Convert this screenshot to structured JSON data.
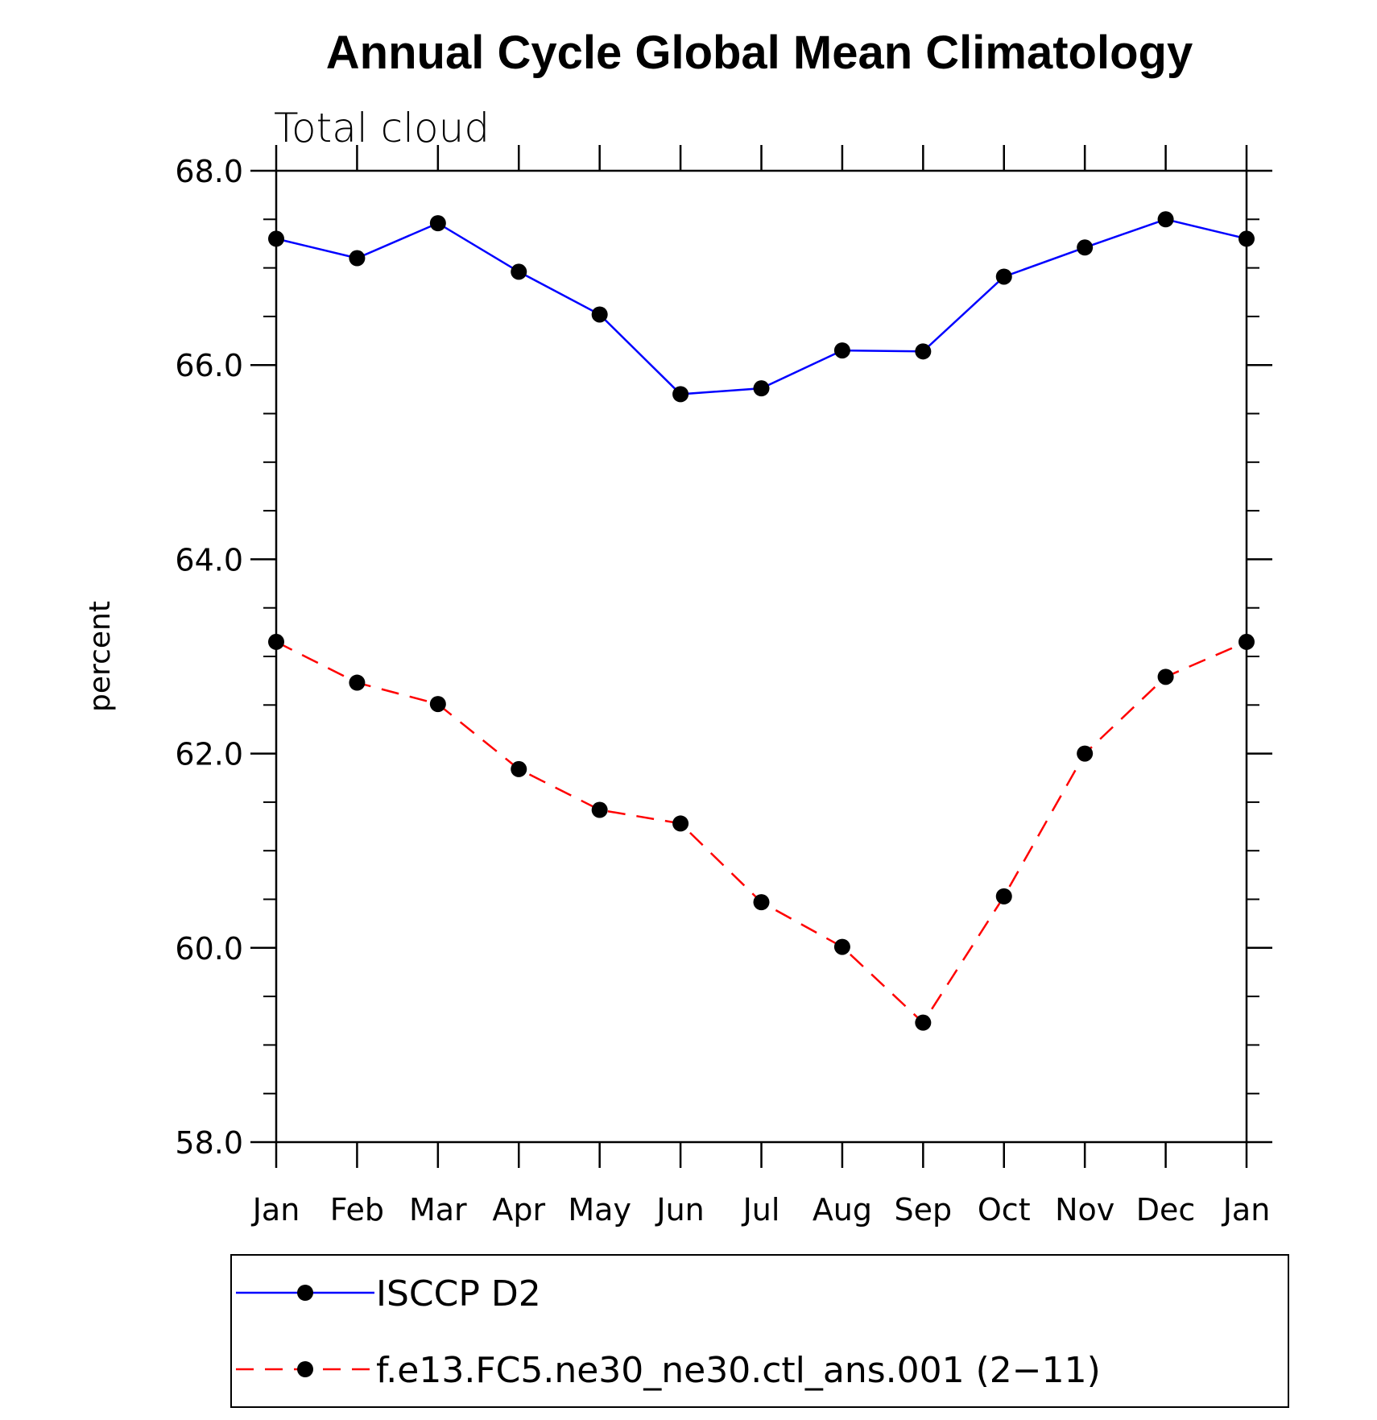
{
  "chart_data": {
    "type": "line",
    "title": "Annual Cycle Global Mean Climatology",
    "subtitle": "Total cloud",
    "ylabel": "percent",
    "xlabel": "",
    "ylim": [
      58.0,
      68.0
    ],
    "yticks": [
      "58.0",
      "60.0",
      "62.0",
      "64.0",
      "66.0",
      "68.0"
    ],
    "categories": [
      "Jan",
      "Feb",
      "Mar",
      "Apr",
      "May",
      "Jun",
      "Jul",
      "Aug",
      "Sep",
      "Oct",
      "Nov",
      "Dec",
      "Jan"
    ],
    "grid": false,
    "legend_position": "bottom",
    "series": [
      {
        "name": "ISCCP D2",
        "color": "#0000ff",
        "dash": "solid",
        "values": [
          67.3,
          67.1,
          67.46,
          66.96,
          66.52,
          65.7,
          65.76,
          66.15,
          66.14,
          66.91,
          67.21,
          67.5,
          67.3
        ]
      },
      {
        "name": "f.e13.FC5.ne30_ne30.ctl_ans.001 (2−11)",
        "color": "#ff0000",
        "dash": "dashed",
        "values": [
          63.15,
          62.73,
          62.51,
          61.84,
          61.42,
          61.28,
          60.47,
          60.01,
          59.23,
          60.53,
          62.0,
          62.79,
          63.15
        ]
      }
    ]
  }
}
